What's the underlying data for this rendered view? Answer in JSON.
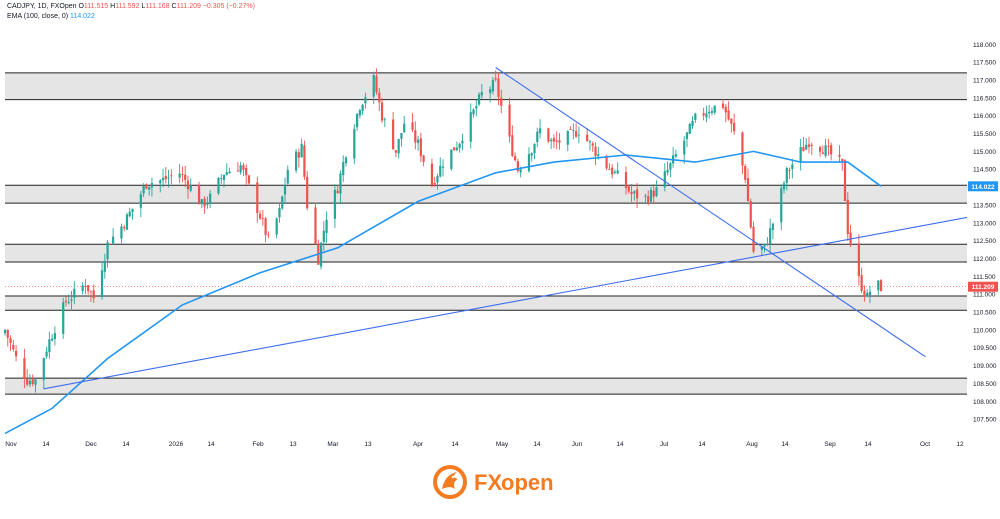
{
  "header": {
    "symbol_line": "CADJPY, 1D, FXOpen",
    "o_label": "O",
    "o_val": "111.515",
    "h_label": "H",
    "h_val": "111.592",
    "l_label": "L",
    "l_val": "111.168",
    "c_label": "C",
    "c_val": "111.209",
    "change": "−0.305 (−0.27%)",
    "ema_label": "EMA (100, close, 0)",
    "ema_val": "114.022"
  },
  "brand": {
    "name_fx": "FX",
    "name_open": "open",
    "logo_icon": "fxopen-dragon-logo"
  },
  "colors": {
    "up": "#26a69a",
    "down": "#ef5350",
    "ema": "#2196f3",
    "trendline": "#3d6df0",
    "zone_fill": "#dcdcdc",
    "zone_border": "#222222",
    "ema_badge": "#2196f3",
    "price_badge": "#ef5350"
  },
  "chart_data": {
    "type": "candlestick",
    "title": "CADJPY, 1D, FXOpen",
    "indicator": "EMA (100, close, 0)",
    "y_axis": {
      "ticks": [
        "118.000",
        "117.500",
        "117.000",
        "116.500",
        "116.000",
        "115.500",
        "115.000",
        "114.500",
        "114.000",
        "113.500",
        "113.000",
        "112.500",
        "112.000",
        "111.500",
        "111.000",
        "110.500",
        "110.000",
        "109.500",
        "109.000",
        "108.500",
        "108.000",
        "107.500"
      ],
      "range": [
        107.0,
        118.4
      ]
    },
    "x_axis": {
      "ticks": [
        "Nov",
        "14",
        "Dec",
        "14",
        "2026",
        "14",
        "Feb",
        "13",
        "Mar",
        "13",
        "Apr",
        "14",
        "May",
        "14",
        "Jun",
        "14",
        "Jul",
        "14",
        "Aug",
        "14",
        "Sep",
        "14",
        "Oct",
        "12"
      ],
      "range": [
        "2025-11-03",
        "2026-10-16"
      ]
    },
    "price_badges": [
      {
        "label": "114.022",
        "value": 114.022,
        "kind": "ema"
      },
      {
        "label": "111.209",
        "value": 111.209,
        "kind": "price"
      }
    ],
    "zones": [
      {
        "low": 116.45,
        "high": 117.2
      },
      {
        "low": 113.55,
        "high": 114.05
      },
      {
        "low": 111.9,
        "high": 112.4
      },
      {
        "low": 110.55,
        "high": 110.95
      },
      {
        "low": 108.2,
        "high": 108.65
      }
    ],
    "trendlines": [
      {
        "from": [
          "2025-11-17",
          108.35
        ],
        "to": [
          "2026-10-16",
          113.15
        ]
      },
      {
        "from": [
          "2026-04-29",
          117.35
        ],
        "to": [
          "2026-10-01",
          109.25
        ]
      }
    ],
    "anchors": [
      [
        "2025-11-03",
        110.0
      ],
      [
        "2025-11-07",
        109.2
      ],
      [
        "2025-11-11",
        108.6
      ],
      [
        "2025-11-14",
        108.6
      ],
      [
        "2025-11-19",
        109.7
      ],
      [
        "2025-11-25",
        110.8
      ],
      [
        "2025-11-28",
        111.0
      ],
      [
        "2025-12-02",
        111.3
      ],
      [
        "2025-12-05",
        110.9
      ],
      [
        "2025-12-10",
        112.4
      ],
      [
        "2025-12-16",
        113.0
      ],
      [
        "2025-12-19",
        113.4
      ],
      [
        "2025-12-24",
        114.1
      ],
      [
        "2025-12-30",
        114.2
      ],
      [
        "2026-01-05",
        114.4
      ],
      [
        "2026-01-09",
        114.0
      ],
      [
        "2026-01-13",
        113.5
      ],
      [
        "2026-01-16",
        113.7
      ],
      [
        "2026-01-21",
        114.4
      ],
      [
        "2026-01-27",
        114.6
      ],
      [
        "2026-01-30",
        114.0
      ],
      [
        "2026-02-03",
        113.2
      ],
      [
        "2026-02-06",
        112.5
      ],
      [
        "2026-02-10",
        113.3
      ],
      [
        "2026-02-13",
        114.5
      ],
      [
        "2026-02-18",
        115.1
      ],
      [
        "2026-02-20",
        113.5
      ],
      [
        "2026-02-24",
        112.0
      ],
      [
        "2026-02-27",
        113.2
      ],
      [
        "2026-03-03",
        114.0
      ],
      [
        "2026-03-06",
        115.0
      ],
      [
        "2026-03-11",
        116.3
      ],
      [
        "2026-03-16",
        117.0
      ],
      [
        "2026-03-19",
        116.0
      ],
      [
        "2026-03-24",
        115.0
      ],
      [
        "2026-03-27",
        115.8
      ],
      [
        "2026-04-01",
        115.2
      ],
      [
        "2026-04-06",
        114.1
      ],
      [
        "2026-04-10",
        114.7
      ],
      [
        "2026-04-16",
        115.3
      ],
      [
        "2026-04-21",
        116.1
      ],
      [
        "2026-04-24",
        116.6
      ],
      [
        "2026-04-29",
        116.9
      ],
      [
        "2026-05-04",
        115.3
      ],
      [
        "2026-05-07",
        114.5
      ],
      [
        "2026-05-12",
        115.1
      ],
      [
        "2026-05-15",
        115.6
      ],
      [
        "2026-05-20",
        115.2
      ],
      [
        "2026-05-25",
        115.4
      ],
      [
        "2026-05-29",
        115.6
      ],
      [
        "2026-06-03",
        115.1
      ],
      [
        "2026-06-08",
        114.6
      ],
      [
        "2026-06-12",
        114.3
      ],
      [
        "2026-06-17",
        113.8
      ],
      [
        "2026-06-22",
        113.7
      ],
      [
        "2026-06-26",
        113.9
      ],
      [
        "2026-07-01",
        114.6
      ],
      [
        "2026-07-06",
        115.3
      ],
      [
        "2026-07-10",
        115.9
      ],
      [
        "2026-07-15",
        116.2
      ],
      [
        "2026-07-20",
        116.3
      ],
      [
        "2026-07-24",
        115.5
      ],
      [
        "2026-07-28",
        114.3
      ],
      [
        "2026-07-31",
        112.2
      ],
      [
        "2026-08-04",
        112.3
      ],
      [
        "2026-08-07",
        113.0
      ],
      [
        "2026-08-12",
        114.4
      ],
      [
        "2026-08-17",
        115.0
      ],
      [
        "2026-08-20",
        115.3
      ],
      [
        "2026-08-25",
        115.1
      ],
      [
        "2026-08-28",
        114.9
      ],
      [
        "2026-09-01",
        114.6
      ],
      [
        "2026-09-03",
        112.8
      ],
      [
        "2026-09-07",
        111.4
      ],
      [
        "2026-09-10",
        110.9
      ],
      [
        "2026-09-12",
        111.3
      ],
      [
        "2026-09-15",
        111.209
      ]
    ],
    "ema_anchors": [
      [
        "2025-11-03",
        107.1
      ],
      [
        "2025-11-20",
        107.8
      ],
      [
        "2025-12-10",
        109.2
      ],
      [
        "2026-01-06",
        110.7
      ],
      [
        "2026-02-03",
        111.6
      ],
      [
        "2026-03-03",
        112.3
      ],
      [
        "2026-04-01",
        113.6
      ],
      [
        "2026-04-29",
        114.4
      ],
      [
        "2026-05-20",
        114.7
      ],
      [
        "2026-06-15",
        114.9
      ],
      [
        "2026-07-10",
        114.7
      ],
      [
        "2026-07-31",
        115.0
      ],
      [
        "2026-08-17",
        114.7
      ],
      [
        "2026-09-03",
        114.7
      ],
      [
        "2026-09-15",
        114.022
      ]
    ]
  }
}
